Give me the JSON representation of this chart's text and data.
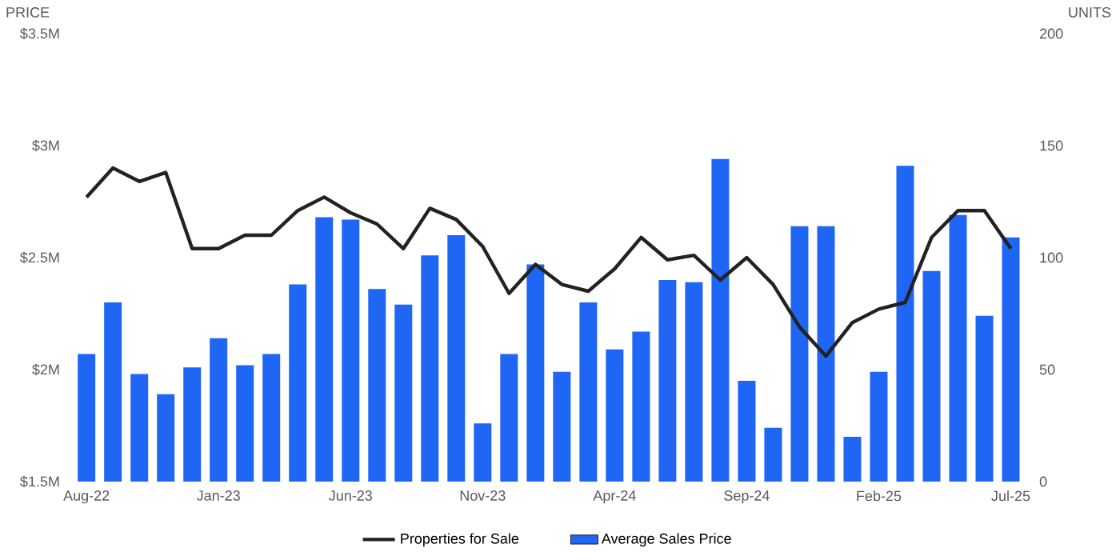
{
  "chart_data": {
    "type": "bar",
    "ylabel": "PRICE",
    "y2label": "UNITS",
    "categories": [
      "Aug-22",
      null,
      null,
      null,
      null,
      "Jan-23",
      null,
      null,
      null,
      null,
      "Jun-23",
      null,
      null,
      null,
      null,
      "Nov-23",
      null,
      null,
      null,
      null,
      "Apr-24",
      null,
      null,
      null,
      null,
      "Sep-24",
      null,
      null,
      null,
      null,
      "Feb-25",
      null,
      null,
      null,
      null,
      "Jul-25"
    ],
    "series": [
      {
        "name": "Properties for Sale",
        "type": "line",
        "axis": "y2",
        "color": "#222222",
        "values": [
          127,
          140,
          134,
          138,
          104,
          104,
          110,
          110,
          121,
          127,
          120,
          115,
          104,
          122,
          117,
          105,
          84,
          97,
          88,
          85,
          95,
          109,
          99,
          101,
          90,
          100,
          88,
          69,
          56,
          71,
          77,
          80,
          109,
          121,
          121,
          104
        ]
      },
      {
        "name": "Average Sales Price",
        "color": "#1f66f5",
        "values": [
          2.07,
          2.3,
          1.98,
          1.89,
          2.01,
          2.14,
          2.02,
          2.07,
          2.38,
          2.68,
          2.67,
          2.36,
          2.29,
          2.51,
          2.6,
          1.76,
          2.07,
          2.47,
          1.99,
          2.3,
          2.09,
          2.17,
          2.4,
          2.39,
          2.94,
          1.95,
          1.74,
          2.64,
          2.64,
          1.7,
          1.99,
          2.91,
          2.44,
          2.69,
          2.24,
          2.59
        ]
      }
    ],
    "ylim": [
      1.5,
      3.5
    ],
    "yticks": [
      {
        "value": 1.5,
        "label": "$1.5M"
      },
      {
        "value": 2,
        "label": "$2M"
      },
      {
        "value": 2.5,
        "label": "$2.5M"
      },
      {
        "value": 3,
        "label": "$3M"
      },
      {
        "value": 3.5,
        "label": "$3.5M"
      }
    ],
    "y2lim": [
      0,
      200
    ],
    "y2ticks": [
      0,
      50,
      100,
      150,
      200
    ],
    "legend": "bottom"
  }
}
